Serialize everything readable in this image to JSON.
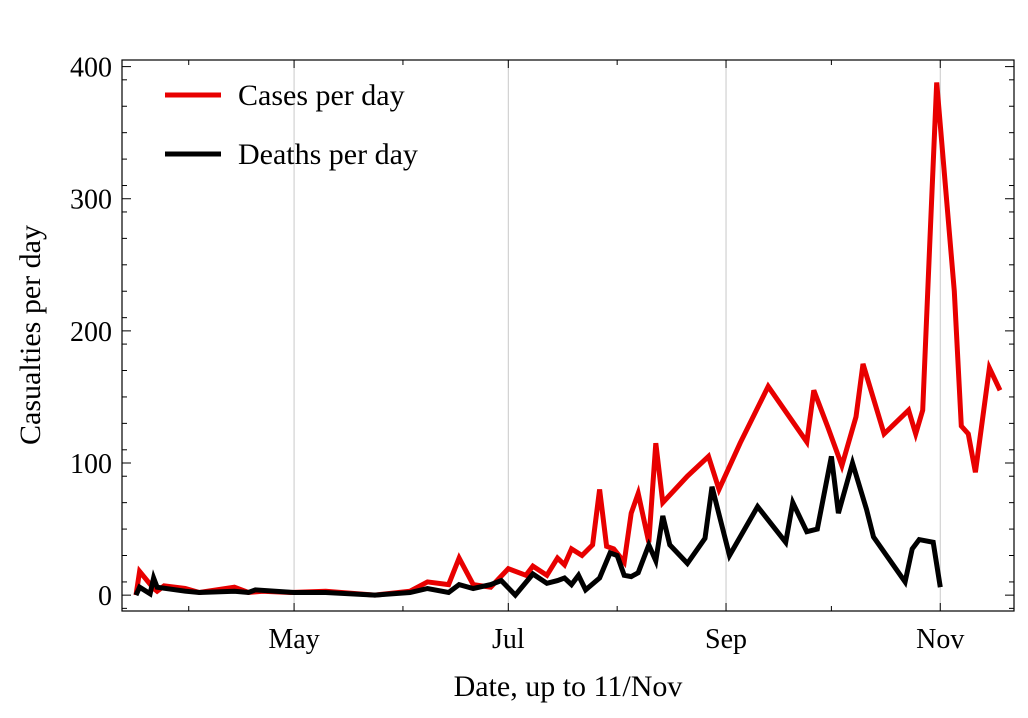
{
  "chart_data": {
    "type": "line",
    "title": "",
    "xlabel": "Date, up to 11/Nov",
    "ylabel": "Casualties per day",
    "xlim": [
      "2020-03-13",
      "2020-11-22"
    ],
    "ylim": [
      -12,
      405
    ],
    "x_ticks": [
      {
        "date": "2020-05-01",
        "label": "May"
      },
      {
        "date": "2020-07-01",
        "label": "Jul"
      },
      {
        "date": "2020-09-01",
        "label": "Sep"
      },
      {
        "date": "2020-11-01",
        "label": "Nov"
      }
    ],
    "y_ticks": [
      0,
      100,
      200,
      300,
      400
    ],
    "grid": "vertical at month ticks",
    "legend_position": "top-left",
    "series": [
      {
        "name": "Cases per day",
        "color": "#e80000",
        "points": [
          [
            "2020-03-17",
            0
          ],
          [
            "2020-03-18",
            18
          ],
          [
            "2020-03-22",
            5
          ],
          [
            "2020-03-23",
            3
          ],
          [
            "2020-03-25",
            7
          ],
          [
            "2020-03-31",
            5
          ],
          [
            "2020-04-04",
            2
          ],
          [
            "2020-04-14",
            6
          ],
          [
            "2020-04-18",
            2
          ],
          [
            "2020-04-22",
            3
          ],
          [
            "2020-04-30",
            2
          ],
          [
            "2020-05-10",
            3
          ],
          [
            "2020-05-24",
            0
          ],
          [
            "2020-06-03",
            3
          ],
          [
            "2020-06-08",
            10
          ],
          [
            "2020-06-14",
            8
          ],
          [
            "2020-06-17",
            28
          ],
          [
            "2020-06-21",
            8
          ],
          [
            "2020-06-26",
            6
          ],
          [
            "2020-07-01",
            20
          ],
          [
            "2020-07-06",
            15
          ],
          [
            "2020-07-08",
            22
          ],
          [
            "2020-07-12",
            15
          ],
          [
            "2020-07-15",
            28
          ],
          [
            "2020-07-17",
            23
          ],
          [
            "2020-07-19",
            35
          ],
          [
            "2020-07-22",
            30
          ],
          [
            "2020-07-25",
            38
          ],
          [
            "2020-07-27",
            80
          ],
          [
            "2020-07-29",
            37
          ],
          [
            "2020-07-31",
            35
          ],
          [
            "2020-08-03",
            25
          ],
          [
            "2020-08-05",
            62
          ],
          [
            "2020-08-07",
            77
          ],
          [
            "2020-08-10",
            40
          ],
          [
            "2020-08-12",
            115
          ],
          [
            "2020-08-14",
            70
          ],
          [
            "2020-08-21",
            90
          ],
          [
            "2020-08-27",
            105
          ],
          [
            "2020-08-30",
            80
          ],
          [
            "2020-09-05",
            115
          ],
          [
            "2020-09-13",
            158
          ],
          [
            "2020-09-24",
            116
          ],
          [
            "2020-09-26",
            155
          ],
          [
            "2020-09-30",
            127
          ],
          [
            "2020-10-04",
            98
          ],
          [
            "2020-10-08",
            135
          ],
          [
            "2020-10-10",
            175
          ],
          [
            "2020-10-16",
            122
          ],
          [
            "2020-10-23",
            140
          ],
          [
            "2020-10-25",
            122
          ],
          [
            "2020-10-27",
            140
          ],
          [
            "2020-10-29",
            265
          ],
          [
            "2020-10-31",
            388
          ],
          [
            "2020-11-05",
            230
          ],
          [
            "2020-11-07",
            128
          ],
          [
            "2020-11-09",
            122
          ],
          [
            "2020-11-11",
            93
          ],
          [
            "2020-11-15",
            172
          ],
          [
            "2020-11-18",
            155
          ]
        ]
      },
      {
        "name": "Deaths per day",
        "color": "#000000",
        "points": [
          [
            "2020-03-17",
            0
          ],
          [
            "2020-03-18",
            6
          ],
          [
            "2020-03-21",
            1
          ],
          [
            "2020-03-22",
            13
          ],
          [
            "2020-03-23",
            6
          ],
          [
            "2020-03-31",
            3
          ],
          [
            "2020-04-04",
            2
          ],
          [
            "2020-04-14",
            3
          ],
          [
            "2020-04-18",
            2
          ],
          [
            "2020-04-20",
            4
          ],
          [
            "2020-05-01",
            2
          ],
          [
            "2020-05-10",
            2
          ],
          [
            "2020-05-24",
            0
          ],
          [
            "2020-06-03",
            2
          ],
          [
            "2020-06-08",
            5
          ],
          [
            "2020-06-14",
            2
          ],
          [
            "2020-06-17",
            8
          ],
          [
            "2020-06-21",
            5
          ],
          [
            "2020-06-26",
            8
          ],
          [
            "2020-06-29",
            11
          ],
          [
            "2020-07-03",
            0
          ],
          [
            "2020-07-08",
            16
          ],
          [
            "2020-07-12",
            9
          ],
          [
            "2020-07-15",
            11
          ],
          [
            "2020-07-17",
            13
          ],
          [
            "2020-07-19",
            8
          ],
          [
            "2020-07-21",
            15
          ],
          [
            "2020-07-23",
            4
          ],
          [
            "2020-07-27",
            13
          ],
          [
            "2020-07-30",
            32
          ],
          [
            "2020-08-01",
            30
          ],
          [
            "2020-08-03",
            15
          ],
          [
            "2020-08-05",
            14
          ],
          [
            "2020-08-07",
            17
          ],
          [
            "2020-08-10",
            38
          ],
          [
            "2020-08-12",
            26
          ],
          [
            "2020-08-14",
            60
          ],
          [
            "2020-08-16",
            38
          ],
          [
            "2020-08-21",
            24
          ],
          [
            "2020-08-26",
            43
          ],
          [
            "2020-08-28",
            82
          ],
          [
            "2020-09-02",
            30
          ],
          [
            "2020-09-10",
            67
          ],
          [
            "2020-09-18",
            40
          ],
          [
            "2020-09-20",
            70
          ],
          [
            "2020-09-24",
            48
          ],
          [
            "2020-09-27",
            50
          ],
          [
            "2020-10-01",
            105
          ],
          [
            "2020-10-03",
            62
          ],
          [
            "2020-10-07",
            100
          ],
          [
            "2020-10-11",
            65
          ],
          [
            "2020-10-13",
            44
          ],
          [
            "2020-10-22",
            10
          ],
          [
            "2020-10-24",
            35
          ],
          [
            "2020-10-26",
            42
          ],
          [
            "2020-10-30",
            40
          ],
          [
            "2020-11-01",
            6
          ]
        ]
      }
    ]
  }
}
